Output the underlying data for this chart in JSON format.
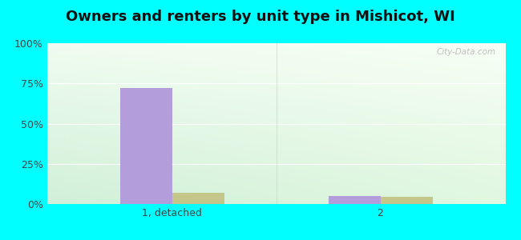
{
  "title": "Owners and renters by unit type in Mishicot, WI",
  "categories": [
    "1, detached",
    "2"
  ],
  "owner_values": [
    72,
    5
  ],
  "renter_values": [
    7,
    4.5
  ],
  "owner_color": "#b39ddb",
  "renter_color": "#c5c68a",
  "ylim": [
    0,
    100
  ],
  "yticks": [
    0,
    25,
    50,
    75,
    100
  ],
  "ytick_labels": [
    "0%",
    "25%",
    "50%",
    "75%",
    "100%"
  ],
  "bg_left_bottom": "#c8ecd4",
  "bg_right_top": "#f0faf0",
  "outer_bg": "#00ffff",
  "bar_width": 0.25,
  "title_fontsize": 13,
  "watermark": "City-Data.com",
  "grid_color": "#ffffff",
  "separator_color": "#cccccc"
}
